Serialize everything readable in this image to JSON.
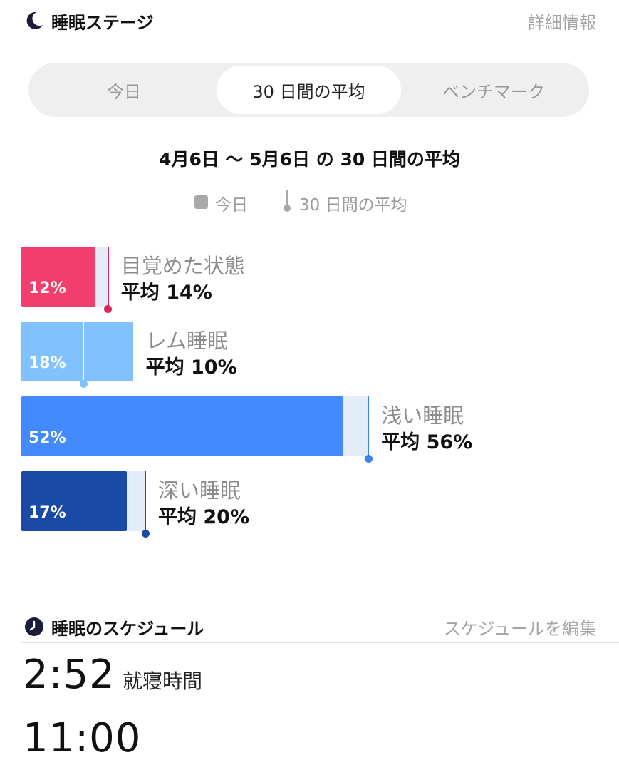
{
  "sleep_stages": {
    "title": "睡眠ステージ",
    "details_link": "詳細情報",
    "tabs": [
      {
        "label": "今日",
        "active": false
      },
      {
        "label": "30 日間の平均",
        "active": true
      },
      {
        "label": "ベンチマーク",
        "active": false
      }
    ],
    "range_title": "4月6日 〜 5月6日 の 30 日間の平均",
    "legend": {
      "today_label": "今日",
      "average_label": "30 日間の平均"
    },
    "stages": [
      {
        "name": "目覚めた状態",
        "percent": 12,
        "percent_label": "12%",
        "average": 14,
        "average_label": "平均 14%",
        "color": "#f23d6d",
        "avg_color": "#e0245e"
      },
      {
        "name": "レム睡眠",
        "percent": 18,
        "percent_label": "18%",
        "average": 10,
        "average_label": "平均 10%",
        "color": "#7fc2ff",
        "avg_color": "#7fc2ff"
      },
      {
        "name": "浅い睡眠",
        "percent": 52,
        "percent_label": "52%",
        "average": 56,
        "average_label": "平均 56%",
        "color": "#4389ff",
        "avg_color": "#3b82f6"
      },
      {
        "name": "深い睡眠",
        "percent": 17,
        "percent_label": "17%",
        "average": 20,
        "average_label": "平均 20%",
        "color": "#1a4aa6",
        "avg_color": "#1a4aa6"
      }
    ]
  },
  "sleep_schedule": {
    "title": "睡眠のスケジュール",
    "edit_link": "スケジュールを編集",
    "bedtime": {
      "time": "2:52",
      "label": "就寝時間"
    },
    "wake_time": {
      "time": "11:00"
    }
  },
  "colors": {
    "accent_text": "#111111",
    "muted_text": "#a4a4a4"
  },
  "icons": [
    "moon-icon",
    "clock-icon",
    "average-marker-icon"
  ]
}
